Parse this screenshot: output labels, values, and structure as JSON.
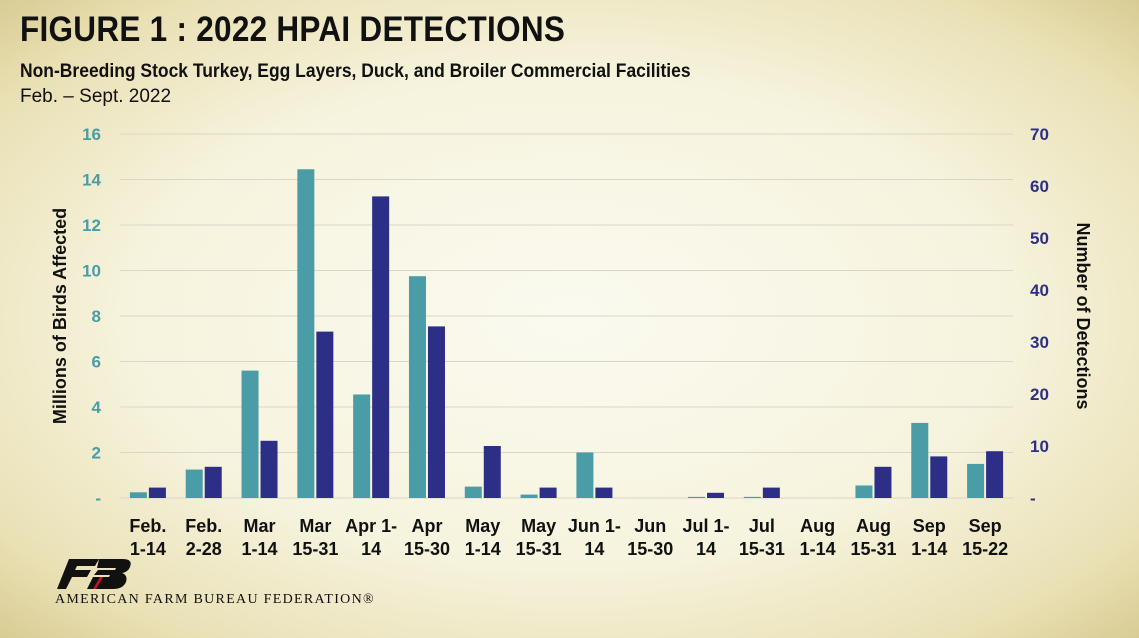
{
  "header": {
    "title": "FIGURE 1 : 2022 HPAI DETECTIONS",
    "subtitle": "Non-Breeding Stock Turkey, Egg Layers, Duck, and Broiler Commercial Facilities",
    "date_range": "Feb. – Sept. 2022"
  },
  "footer": {
    "org_name": "AMERICAN FARM BUREAU FEDERATION®"
  },
  "colors": {
    "teal": "#4a9ca6",
    "navy": "#2d2e86",
    "grid": "#d9d6c8"
  },
  "chart_data": {
    "type": "bar",
    "categories": [
      [
        "Feb.",
        "1-14"
      ],
      [
        "Feb.",
        "2-28"
      ],
      [
        "Mar",
        "1-14"
      ],
      [
        "Mar",
        "15-31"
      ],
      [
        "Apr 1-",
        "14"
      ],
      [
        "Apr",
        "15-30"
      ],
      [
        "May",
        "1-14"
      ],
      [
        "May",
        "15-31"
      ],
      [
        "Jun 1-",
        "14"
      ],
      [
        "Jun",
        "15-30"
      ],
      [
        "Jul 1-",
        "14"
      ],
      [
        "Jul",
        "15-31"
      ],
      [
        "Aug",
        "1-14"
      ],
      [
        "Aug",
        "15-31"
      ],
      [
        "Sep",
        "1-14"
      ],
      [
        "Sep",
        "15-22"
      ]
    ],
    "series": [
      {
        "axis": "left",
        "color": "#4a9ca6",
        "values": [
          0.25,
          1.25,
          5.6,
          14.45,
          4.55,
          9.75,
          0.5,
          0.15,
          2.0,
          0,
          0.05,
          0.05,
          0,
          0.55,
          3.3,
          1.5
        ]
      },
      {
        "axis": "right",
        "color": "#2d2e86",
        "values": [
          2,
          6,
          11,
          32,
          58,
          33,
          10,
          2,
          2,
          0,
          1,
          2,
          0,
          6,
          8,
          9
        ]
      }
    ],
    "ylabel": "Millions of Birds Affected",
    "y2label": "Number of Detections",
    "ylim": [
      0,
      16
    ],
    "y2lim": [
      0,
      70
    ],
    "yticks": [
      "-",
      "2",
      "4",
      "6",
      "8",
      "10",
      "12",
      "14",
      "16"
    ],
    "y2ticks": [
      "-",
      "10",
      "20",
      "30",
      "40",
      "50",
      "60",
      "70"
    ],
    "grid": true
  }
}
